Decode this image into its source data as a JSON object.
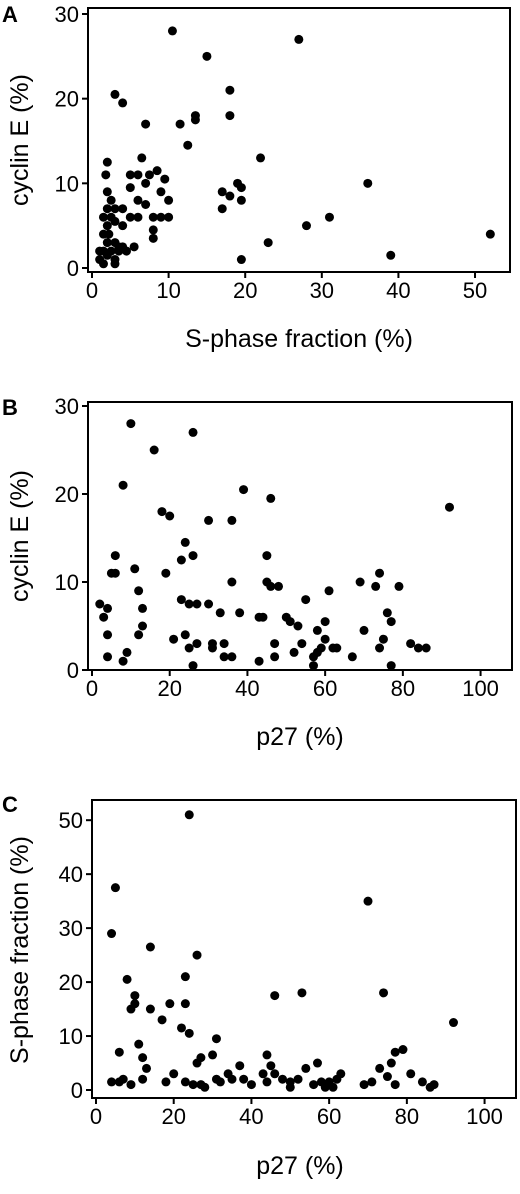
{
  "chart_data": [
    {
      "type": "scatter",
      "panel": "A",
      "xlabel": "S-phase fraction (%)",
      "ylabel": "cyclin E (%)",
      "xlim": [
        0,
        53
      ],
      "ylim": [
        0,
        30
      ],
      "xticks": [
        0,
        10,
        20,
        30,
        40,
        50
      ],
      "yticks": [
        0,
        10,
        20,
        30
      ],
      "grid": false,
      "points": [
        [
          1,
          2
        ],
        [
          1.5,
          2
        ],
        [
          1,
          1
        ],
        [
          1.5,
          0.5
        ],
        [
          2,
          1.5
        ],
        [
          2.5,
          2
        ],
        [
          3,
          1
        ],
        [
          3.5,
          2.5
        ],
        [
          2,
          3
        ],
        [
          1.5,
          4
        ],
        [
          2,
          5
        ],
        [
          1.5,
          6
        ],
        [
          2,
          7
        ],
        [
          2,
          9
        ],
        [
          1.8,
          11
        ],
        [
          2,
          12.5
        ],
        [
          2.5,
          6
        ],
        [
          2.2,
          4
        ],
        [
          3,
          3
        ],
        [
          3.5,
          2
        ],
        [
          4,
          2.5
        ],
        [
          3,
          0.5
        ],
        [
          4.5,
          2
        ],
        [
          3,
          5.5
        ],
        [
          2.5,
          8
        ],
        [
          3,
          7
        ],
        [
          4,
          7
        ],
        [
          4,
          5
        ],
        [
          5,
          6
        ],
        [
          5,
          9.5
        ],
        [
          5,
          11
        ],
        [
          6,
          11
        ],
        [
          6.5,
          13
        ],
        [
          7,
          10
        ],
        [
          7.5,
          11
        ],
        [
          6,
          8
        ],
        [
          6,
          6
        ],
        [
          8,
          4.5
        ],
        [
          8,
          6
        ],
        [
          9,
          6
        ],
        [
          9,
          9
        ],
        [
          9.5,
          10.5
        ],
        [
          10,
          6
        ],
        [
          10,
          8
        ],
        [
          8.5,
          11.5
        ],
        [
          8,
          3.5
        ],
        [
          7,
          7.5
        ],
        [
          5.5,
          2.5
        ],
        [
          3,
          20.5
        ],
        [
          4,
          19.5
        ],
        [
          7,
          17
        ],
        [
          10.5,
          28
        ],
        [
          11.5,
          17
        ],
        [
          12.5,
          14.5
        ],
        [
          13.5,
          18
        ],
        [
          13.5,
          17.5
        ],
        [
          15,
          25
        ],
        [
          17,
          9
        ],
        [
          17,
          7
        ],
        [
          18,
          8.5
        ],
        [
          18,
          21
        ],
        [
          18,
          18
        ],
        [
          19,
          10
        ],
        [
          19.5,
          9.5
        ],
        [
          19.5,
          8
        ],
        [
          19.5,
          1
        ],
        [
          22,
          13
        ],
        [
          23,
          3
        ],
        [
          27,
          27
        ],
        [
          28,
          5
        ],
        [
          31,
          6
        ],
        [
          36,
          10
        ],
        [
          39,
          1.5
        ],
        [
          52,
          4
        ]
      ]
    },
    {
      "type": "scatter",
      "panel": "B",
      "xlabel": "p27 (%)",
      "ylabel": "cyclin E (%)",
      "xlim": [
        0,
        105
      ],
      "ylim": [
        0,
        30
      ],
      "xticks": [
        0,
        20,
        40,
        60,
        80,
        100
      ],
      "yticks": [
        0,
        10,
        20,
        30
      ],
      "grid": false,
      "points": [
        [
          2,
          7.5
        ],
        [
          3,
          6
        ],
        [
          4,
          7
        ],
        [
          4,
          4
        ],
        [
          5,
          11
        ],
        [
          6,
          11
        ],
        [
          6,
          13
        ],
        [
          4,
          1.5
        ],
        [
          8,
          21
        ],
        [
          8,
          1
        ],
        [
          9,
          2
        ],
        [
          10,
          28
        ],
        [
          11,
          11.5
        ],
        [
          12,
          9
        ],
        [
          12,
          4
        ],
        [
          13,
          7
        ],
        [
          13,
          5
        ],
        [
          16,
          25
        ],
        [
          18,
          18
        ],
        [
          20,
          17.5
        ],
        [
          19,
          11
        ],
        [
          21,
          3.5
        ],
        [
          23,
          12.5
        ],
        [
          23,
          8
        ],
        [
          24,
          14.5
        ],
        [
          24,
          4
        ],
        [
          25,
          7.5
        ],
        [
          25,
          2.5
        ],
        [
          26,
          27
        ],
        [
          26,
          13
        ],
        [
          27,
          7.5
        ],
        [
          27,
          3
        ],
        [
          26,
          0.5
        ],
        [
          30,
          17
        ],
        [
          30,
          7.5
        ],
        [
          31,
          3
        ],
        [
          31,
          2.5
        ],
        [
          33,
          6.5
        ],
        [
          34,
          3
        ],
        [
          34,
          1.5
        ],
        [
          36,
          1.5
        ],
        [
          36,
          17
        ],
        [
          36,
          10
        ],
        [
          38,
          6.5
        ],
        [
          39,
          20.5
        ],
        [
          43,
          6
        ],
        [
          43,
          1
        ],
        [
          44,
          6
        ],
        [
          45,
          13
        ],
        [
          45,
          10
        ],
        [
          46,
          19.5
        ],
        [
          46,
          9.5
        ],
        [
          47,
          3
        ],
        [
          47,
          1.5
        ],
        [
          48,
          9.5
        ],
        [
          50,
          6
        ],
        [
          51,
          5.5
        ],
        [
          52,
          2
        ],
        [
          53,
          5
        ],
        [
          54,
          3
        ],
        [
          55,
          8
        ],
        [
          57,
          1.5
        ],
        [
          57,
          0.5
        ],
        [
          58,
          4.5
        ],
        [
          58,
          2
        ],
        [
          59,
          2.5
        ],
        [
          60,
          5.5
        ],
        [
          60,
          3.5
        ],
        [
          61,
          9
        ],
        [
          62,
          2.5
        ],
        [
          63,
          2.5
        ],
        [
          67,
          1.5
        ],
        [
          69,
          10
        ],
        [
          70,
          4.5
        ],
        [
          73,
          9.5
        ],
        [
          74,
          11
        ],
        [
          74,
          2.5
        ],
        [
          75,
          3.5
        ],
        [
          76,
          6.5
        ],
        [
          77,
          5.5
        ],
        [
          77,
          0.5
        ],
        [
          79,
          9.5
        ],
        [
          82,
          3
        ],
        [
          84,
          2.5
        ],
        [
          86,
          2.5
        ],
        [
          92,
          18.5
        ]
      ]
    },
    {
      "type": "scatter",
      "panel": "C",
      "xlabel": "p27 (%)",
      "ylabel": "S-phase fraction (%)",
      "xlim": [
        0,
        105
      ],
      "ylim": [
        0,
        53
      ],
      "xticks": [
        0,
        20,
        40,
        60,
        80,
        100
      ],
      "yticks": [
        0,
        10,
        20,
        30,
        40,
        50
      ],
      "grid": false,
      "points": [
        [
          4,
          29
        ],
        [
          4,
          1.5
        ],
        [
          5,
          37.5
        ],
        [
          6,
          1.5
        ],
        [
          6,
          7
        ],
        [
          7,
          2
        ],
        [
          8,
          20.5
        ],
        [
          9,
          1
        ],
        [
          9,
          15
        ],
        [
          10,
          17.5
        ],
        [
          10,
          16
        ],
        [
          11,
          8.5
        ],
        [
          12,
          6
        ],
        [
          12,
          2
        ],
        [
          13,
          4
        ],
        [
          14,
          26.5
        ],
        [
          14,
          15
        ],
        [
          17,
          13
        ],
        [
          18,
          1.5
        ],
        [
          19,
          16
        ],
        [
          20,
          3
        ],
        [
          22,
          11.5
        ],
        [
          23,
          21
        ],
        [
          23,
          16
        ],
        [
          23,
          1.5
        ],
        [
          24,
          51
        ],
        [
          24,
          10.5
        ],
        [
          25,
          1
        ],
        [
          26,
          25
        ],
        [
          26,
          5
        ],
        [
          27,
          6
        ],
        [
          27,
          1
        ],
        [
          28,
          0.5
        ],
        [
          30,
          6.5
        ],
        [
          31,
          9.5
        ],
        [
          31,
          2
        ],
        [
          32,
          1.5
        ],
        [
          34,
          3
        ],
        [
          35,
          2
        ],
        [
          37,
          4.5
        ],
        [
          38,
          2
        ],
        [
          40,
          1
        ],
        [
          43,
          3
        ],
        [
          44,
          1.5
        ],
        [
          44,
          6.5
        ],
        [
          45,
          4.5
        ],
        [
          46,
          17.5
        ],
        [
          46,
          3
        ],
        [
          48,
          2
        ],
        [
          50,
          1.5
        ],
        [
          50,
          0.5
        ],
        [
          52,
          2
        ],
        [
          53,
          18
        ],
        [
          54,
          4
        ],
        [
          56,
          1
        ],
        [
          57,
          5
        ],
        [
          58,
          1.5
        ],
        [
          59,
          0.5
        ],
        [
          60,
          1.5
        ],
        [
          61,
          0.5
        ],
        [
          62,
          2
        ],
        [
          63,
          3
        ],
        [
          69,
          1
        ],
        [
          70,
          35
        ],
        [
          71,
          1.5
        ],
        [
          73,
          4
        ],
        [
          74,
          18
        ],
        [
          75,
          2.5
        ],
        [
          76,
          5
        ],
        [
          77,
          7
        ],
        [
          77,
          1
        ],
        [
          79,
          7.5
        ],
        [
          81,
          3
        ],
        [
          84,
          1.5
        ],
        [
          86,
          0.5
        ],
        [
          87,
          1
        ],
        [
          92,
          12.5
        ]
      ]
    }
  ]
}
